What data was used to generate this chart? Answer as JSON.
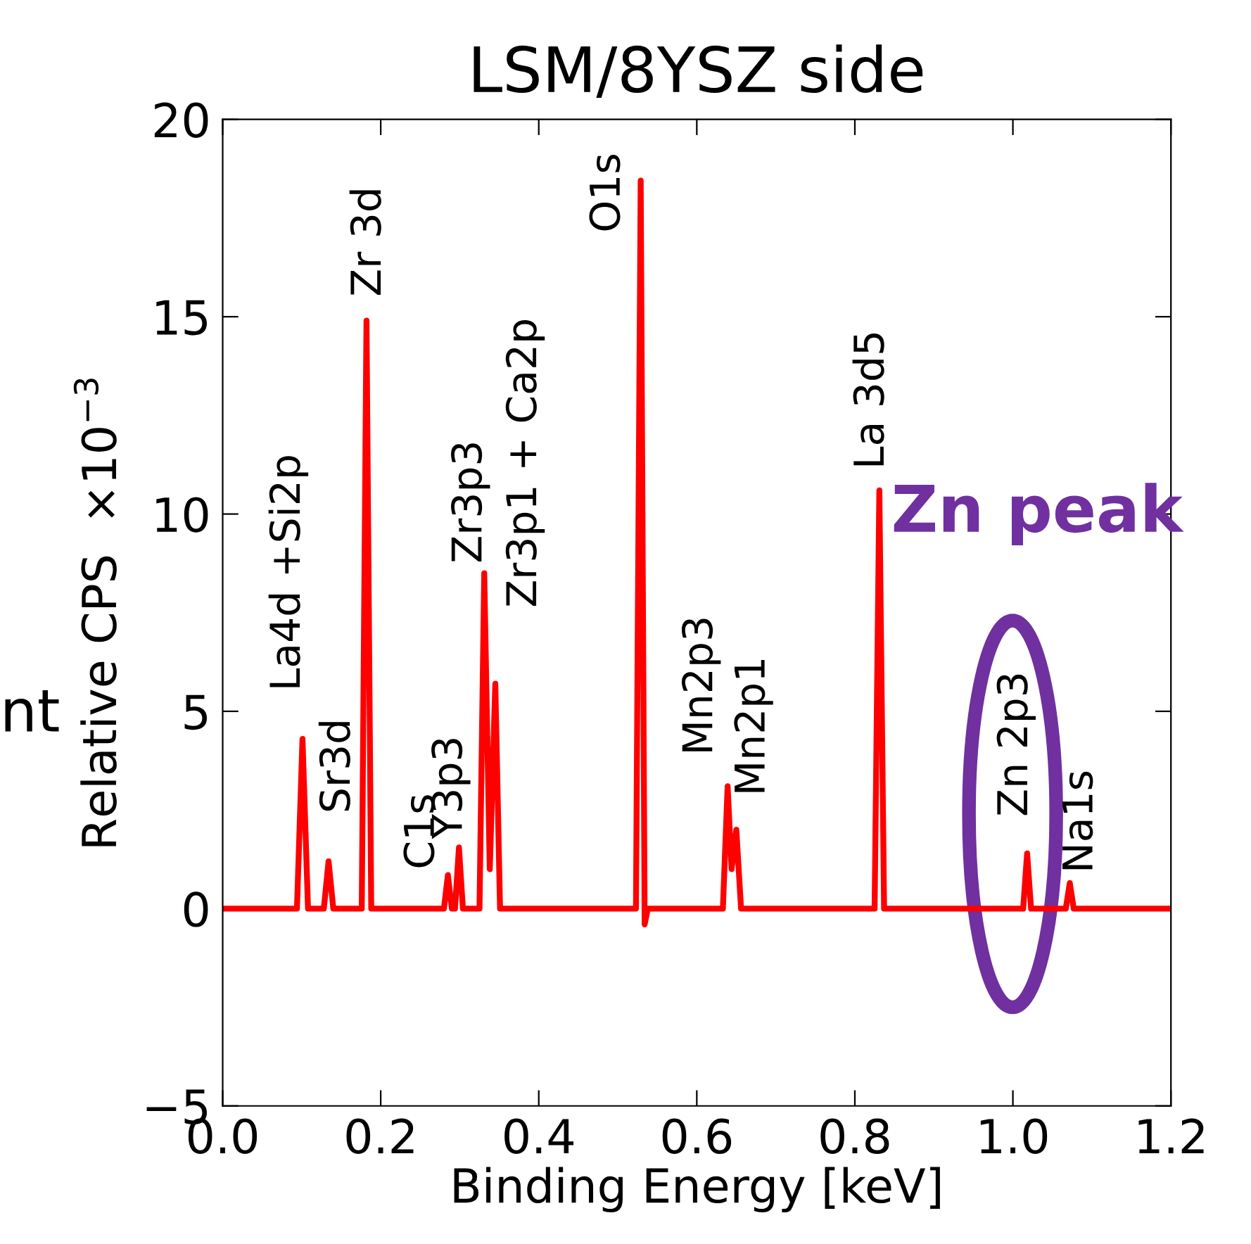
{
  "chart_data": {
    "type": "line",
    "title": "LSM/8YSZ side",
    "xlabel": "Binding Energy [keV]",
    "ylabel": "Relative CPS  ×10$^{−3}$",
    "series": [
      {
        "color": "#ff0000",
        "x": [
          0,
          0.094,
          0.101,
          0.108,
          0.128,
          0.134,
          0.14,
          0.176,
          0.182,
          0.188,
          0.28,
          0.285,
          0.29,
          0.294,
          0.299,
          0.304,
          0.325,
          0.331,
          0.338,
          0.345,
          0.351,
          0.523,
          0.529,
          0.534,
          0.538,
          0.633,
          0.639,
          0.644,
          0.65,
          0.656,
          0.825,
          0.831,
          0.837,
          1.013,
          1.018,
          1.023,
          1.067,
          1.072,
          1.077,
          1.2
        ],
        "values": [
          0,
          0,
          4.3,
          0,
          0,
          1.2,
          0,
          0,
          14.9,
          0,
          0,
          0.85,
          0,
          0,
          1.55,
          0,
          0,
          8.5,
          1.0,
          5.7,
          0,
          0,
          18.45,
          -0.4,
          0,
          0,
          3.1,
          1.0,
          2.0,
          0,
          0,
          10.6,
          0,
          0,
          1.4,
          0,
          0,
          0.65,
          0,
          0
        ]
      }
    ],
    "xlim": [
      0,
      1.2
    ],
    "xticks": [
      {
        "value": 0,
        "label": "0.0"
      },
      {
        "value": 0.2,
        "label": "0.2"
      },
      {
        "value": 0.4,
        "label": "0.4"
      },
      {
        "value": 0.6,
        "label": "0.6"
      },
      {
        "value": 0.8,
        "label": "0.8"
      },
      {
        "value": 1.0,
        "label": "1.0"
      },
      {
        "value": 1.2,
        "label": "1.2"
      }
    ],
    "ylim": [
      -5,
      20
    ],
    "yticks": [
      {
        "value": -5,
        "label": "−5"
      },
      0,
      5,
      10,
      15,
      20
    ],
    "grid": false,
    "marker": "none",
    "line_style": "solid",
    "annotations": [
      {
        "text": "La4d +Si2p",
        "x": 0.101,
        "y": 4.3
      },
      {
        "text": "Sr3d",
        "x": 0.134,
        "y": 1.2
      },
      {
        "text": "Zr 3d",
        "x": 0.182,
        "y": 14.9
      },
      {
        "text": "C1s",
        "x": 0.285,
        "y": 0.85
      },
      {
        "text": "Y3p3",
        "x": 0.299,
        "y": 1.55
      },
      {
        "text": "Zr3p3",
        "x": 0.331,
        "y": 8.5
      },
      {
        "text": "Zr3p1 + Ca2p",
        "x": 0.345,
        "y": 5.7
      },
      {
        "text": "O1s",
        "x": 0.529,
        "y": 18.45
      },
      {
        "text": "Mn2p3",
        "x": 0.639,
        "y": 3.1
      },
      {
        "text": "Mn2p1",
        "x": 0.65,
        "y": 2.0
      },
      {
        "text": "La 3d5",
        "x": 0.831,
        "y": 10.6
      },
      {
        "text": "Zn 2p3",
        "x": 1.018,
        "y": 1.4
      },
      {
        "text": "Na1s",
        "x": 1.072,
        "y": 0.65
      },
      "Zn peak",
      "nt"
    ]
  }
}
